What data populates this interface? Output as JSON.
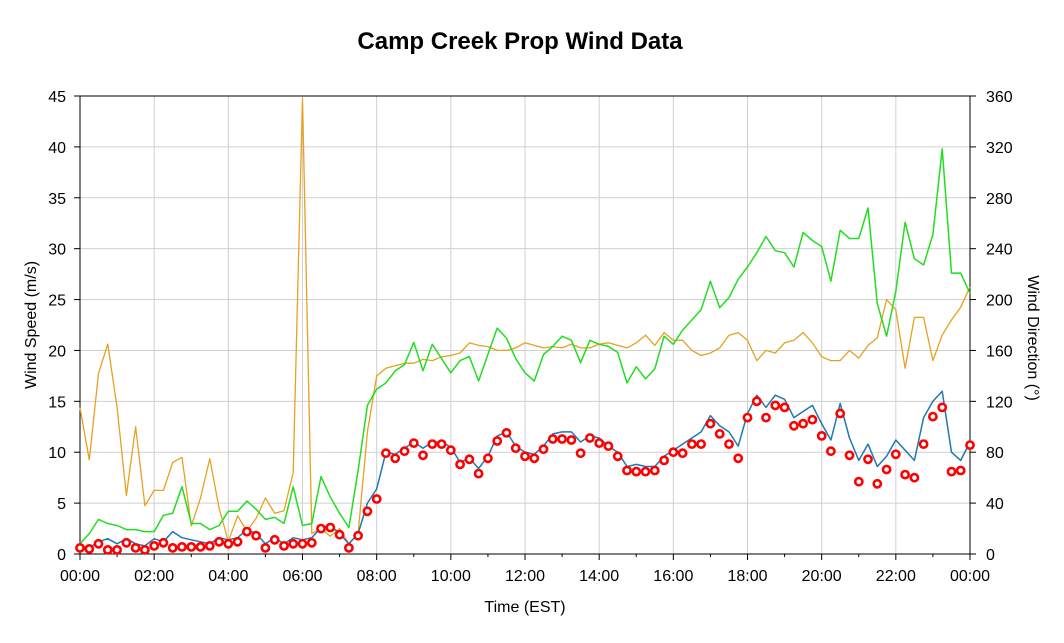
{
  "chart_data": {
    "type": "line",
    "title": "Camp Creek Prop Wind Data",
    "xlabel": "Time (EST)",
    "ylabel": "Wind Speed (m/s)",
    "y2label": "Wind Direction (°)",
    "xlim": [
      0,
      24
    ],
    "ylim": [
      0,
      45
    ],
    "y2lim": [
      0,
      360
    ],
    "x_ticks": [
      "00:00",
      "02:00",
      "04:00",
      "06:00",
      "08:00",
      "10:00",
      "12:00",
      "14:00",
      "16:00",
      "18:00",
      "20:00",
      "22:00",
      "00:00"
    ],
    "y_ticks": [
      "0",
      "5",
      "10",
      "15",
      "20",
      "25",
      "30",
      "35",
      "40",
      "45"
    ],
    "y2_ticks": [
      "0",
      "40",
      "80",
      "120",
      "160",
      "200",
      "240",
      "280",
      "320",
      "360"
    ],
    "grid": true,
    "legend": "none",
    "series": [
      {
        "role": "Wind Speed",
        "axis": "left",
        "style": "line",
        "color": "#1f77b4",
        "x": [
          0,
          0.25,
          0.5,
          0.75,
          1,
          1.25,
          1.5,
          1.75,
          2,
          2.25,
          2.5,
          2.75,
          3,
          3.25,
          3.5,
          3.75,
          4,
          4.25,
          4.5,
          4.75,
          5,
          5.25,
          5.5,
          5.75,
          6,
          6.25,
          6.5,
          6.75,
          7,
          7.25,
          7.5,
          7.75,
          8,
          8.25,
          8.5,
          8.75,
          9,
          9.25,
          9.5,
          9.75,
          10,
          10.25,
          10.5,
          10.75,
          11,
          11.25,
          11.5,
          11.75,
          12,
          12.25,
          12.5,
          12.75,
          13,
          13.25,
          13.5,
          13.75,
          14,
          14.25,
          14.5,
          14.75,
          15,
          15.25,
          15.5,
          15.75,
          16,
          16.25,
          16.5,
          16.75,
          17,
          17.25,
          17.5,
          17.75,
          18,
          18.25,
          18.5,
          18.75,
          19,
          19.25,
          19.5,
          19.75,
          20,
          20.25,
          20.5,
          20.75,
          21,
          21.25,
          21.5,
          21.75,
          22,
          22.25,
          22.5,
          22.75,
          23,
          23.25,
          23.5,
          23.75,
          24
        ],
        "values": [
          0.8,
          0.6,
          1.2,
          1.5,
          1.0,
          1.5,
          1.0,
          0.8,
          1.5,
          1.2,
          2.2,
          1.6,
          1.4,
          1.2,
          1.0,
          1.6,
          1.4,
          1.6,
          2.4,
          2.0,
          1.0,
          1.6,
          1.0,
          1.6,
          1.4,
          1.6,
          2.6,
          2.8,
          2.0,
          1.0,
          2.0,
          5.0,
          6.4,
          10.0,
          9.8,
          10.4,
          11.0,
          10.4,
          11.0,
          11.0,
          10.5,
          9.0,
          9.4,
          8.4,
          9.6,
          11.6,
          12.0,
          10.6,
          10.0,
          9.8,
          10.6,
          11.8,
          12.0,
          12.0,
          11.0,
          11.6,
          11.4,
          10.6,
          10.0,
          8.6,
          8.8,
          8.6,
          8.6,
          9.6,
          10.2,
          10.8,
          11.4,
          12.0,
          13.6,
          12.6,
          12.0,
          10.6,
          13.8,
          15.6,
          14.4,
          15.6,
          15.2,
          13.4,
          14.0,
          14.6,
          12.8,
          11.2,
          14.8,
          11.4,
          9.2,
          10.8,
          8.6,
          9.6,
          11.2,
          10.2,
          9.2,
          13.4,
          15.0,
          16.0,
          10.0,
          9.2,
          11.0
        ]
      },
      {
        "role": "Wind Speed (points)",
        "axis": "left",
        "style": "markers",
        "color": "#ff0000",
        "x": [
          0,
          0.25,
          0.5,
          0.75,
          1,
          1.25,
          1.5,
          1.75,
          2,
          2.25,
          2.5,
          2.75,
          3,
          3.25,
          3.5,
          3.75,
          4,
          4.25,
          4.5,
          4.75,
          5,
          5.25,
          5.5,
          5.75,
          6,
          6.25,
          6.5,
          6.75,
          7,
          7.25,
          7.5,
          7.75,
          8,
          8.25,
          8.5,
          8.75,
          9,
          9.25,
          9.5,
          9.75,
          10,
          10.25,
          10.5,
          10.75,
          11,
          11.25,
          11.5,
          11.75,
          12,
          12.25,
          12.5,
          12.75,
          13,
          13.25,
          13.5,
          13.75,
          14,
          14.25,
          14.5,
          14.75,
          15,
          15.25,
          15.5,
          15.75,
          16,
          16.25,
          16.5,
          16.75,
          17,
          17.25,
          17.5,
          17.75,
          18,
          18.25,
          18.5,
          18.75,
          19,
          19.25,
          19.5,
          19.75,
          20,
          20.25,
          20.5,
          20.75,
          21,
          21.25,
          21.5,
          21.75,
          22,
          22.25,
          22.5,
          22.75,
          23,
          23.25,
          23.5,
          23.75,
          24
        ],
        "values": [
          0.6,
          0.5,
          1.0,
          0.4,
          0.4,
          1.1,
          0.6,
          0.4,
          0.8,
          1.1,
          0.6,
          0.7,
          0.7,
          0.7,
          0.8,
          1.2,
          1.0,
          1.2,
          2.2,
          1.8,
          0.6,
          1.4,
          0.8,
          1.0,
          1.0,
          1.1,
          2.5,
          2.6,
          1.9,
          0.6,
          1.8,
          4.2,
          5.4,
          9.9,
          9.4,
          10.1,
          10.9,
          9.7,
          10.8,
          10.8,
          10.2,
          8.8,
          9.3,
          7.9,
          9.4,
          11.1,
          11.9,
          10.4,
          9.6,
          9.4,
          10.3,
          11.3,
          11.3,
          11.2,
          9.9,
          11.4,
          10.9,
          10.6,
          9.6,
          8.2,
          8.1,
          8.1,
          8.2,
          9.2,
          10.0,
          9.9,
          10.8,
          10.8,
          12.8,
          11.8,
          10.8,
          9.4,
          13.4,
          15.0,
          13.4,
          14.6,
          14.4,
          12.6,
          12.8,
          13.2,
          11.6,
          10.1,
          13.8,
          9.7,
          7.1,
          9.3,
          6.9,
          8.3,
          9.8,
          7.8,
          7.5,
          10.8,
          13.5,
          14.4,
          8.1,
          8.2,
          10.7
        ]
      },
      {
        "role": "Wind Gust",
        "axis": "left",
        "style": "line",
        "color": "#22dd22",
        "x": [
          0,
          0.25,
          0.5,
          0.75,
          1,
          1.25,
          1.5,
          1.75,
          2,
          2.25,
          2.5,
          2.75,
          3,
          3.25,
          3.5,
          3.75,
          4,
          4.25,
          4.5,
          4.75,
          5,
          5.25,
          5.5,
          5.75,
          6,
          6.25,
          6.5,
          6.75,
          7,
          7.25,
          7.5,
          7.75,
          8,
          8.25,
          8.5,
          8.75,
          9,
          9.25,
          9.5,
          9.75,
          10,
          10.25,
          10.5,
          10.75,
          11,
          11.25,
          11.5,
          11.75,
          12,
          12.25,
          12.5,
          12.75,
          13,
          13.25,
          13.5,
          13.75,
          14,
          14.25,
          14.5,
          14.75,
          15,
          15.25,
          15.5,
          15.75,
          16,
          16.25,
          16.5,
          16.75,
          17,
          17.25,
          17.5,
          17.75,
          18,
          18.25,
          18.5,
          18.75,
          19,
          19.25,
          19.5,
          19.75,
          20,
          20.25,
          20.5,
          20.75,
          21,
          21.25,
          21.5,
          21.75,
          22,
          22.25,
          22.5,
          22.75,
          23,
          23.25,
          23.5,
          23.75,
          24
        ],
        "values": [
          1.0,
          2.0,
          3.4,
          3.0,
          2.8,
          2.4,
          2.4,
          2.2,
          2.2,
          3.8,
          4.0,
          6.6,
          3.0,
          3.0,
          2.4,
          2.8,
          4.2,
          4.2,
          5.2,
          4.4,
          3.4,
          3.6,
          3.0,
          6.6,
          2.8,
          3.0,
          7.6,
          5.6,
          4.0,
          2.6,
          8.2,
          14.6,
          16.2,
          16.8,
          18.0,
          18.6,
          20.8,
          18.0,
          20.6,
          19.2,
          17.8,
          19.0,
          19.4,
          17.0,
          19.6,
          22.2,
          21.2,
          19.2,
          17.8,
          17.0,
          19.6,
          20.4,
          21.4,
          21.0,
          18.8,
          21.0,
          20.6,
          20.4,
          19.8,
          16.8,
          18.4,
          17.2,
          18.2,
          21.4,
          20.6,
          22.0,
          23.0,
          24.0,
          26.8,
          24.2,
          25.2,
          27.0,
          28.2,
          29.6,
          31.2,
          29.8,
          29.6,
          28.2,
          31.6,
          30.8,
          30.2,
          26.8,
          31.8,
          31.0,
          31.0,
          34.0,
          24.6,
          21.4,
          25.8,
          32.6,
          29.0,
          28.4,
          31.4,
          39.8,
          27.6,
          27.6,
          25.6
        ]
      },
      {
        "role": "Wind Direction",
        "axis": "right",
        "style": "line",
        "color": "#e8a020",
        "x": [
          0,
          0.25,
          0.5,
          0.75,
          1,
          1.25,
          1.5,
          1.75,
          2,
          2.25,
          2.5,
          2.75,
          3,
          3.25,
          3.5,
          3.75,
          4,
          4.25,
          4.5,
          4.75,
          5,
          5.25,
          5.5,
          5.75,
          6,
          6.25,
          6.5,
          6.75,
          7,
          7.25,
          7.5,
          7.75,
          8,
          8.25,
          8.5,
          8.75,
          9,
          9.25,
          9.5,
          9.75,
          10,
          10.25,
          10.5,
          10.75,
          11,
          11.25,
          11.5,
          11.75,
          12,
          12.25,
          12.5,
          12.75,
          13,
          13.25,
          13.5,
          13.75,
          14,
          14.25,
          14.5,
          14.75,
          15,
          15.25,
          15.5,
          15.75,
          16,
          16.25,
          16.5,
          16.75,
          17,
          17.25,
          17.5,
          17.75,
          18,
          18.25,
          18.5,
          18.75,
          19,
          19.25,
          19.5,
          19.75,
          20,
          20.25,
          20.5,
          20.75,
          21,
          21.25,
          21.5,
          21.75,
          22,
          22.25,
          22.5,
          22.75,
          23,
          23.25,
          23.5,
          23.75,
          24
        ],
        "values": [
          115,
          74,
          142,
          165,
          115,
          46,
          100,
          38,
          50,
          50,
          72,
          76,
          22,
          44,
          75,
          36,
          10,
          30,
          18,
          28,
          44,
          32,
          34,
          64,
          358,
          16,
          20,
          14,
          20,
          8,
          16,
          96,
          140,
          146,
          148,
          150,
          150,
          153,
          152,
          155,
          156,
          158,
          166,
          164,
          163,
          160,
          160,
          162,
          166,
          164,
          162,
          163,
          162,
          165,
          162,
          162,
          165,
          166,
          164,
          162,
          166,
          172,
          164,
          174,
          168,
          168,
          160,
          156,
          158,
          162,
          172,
          174,
          168,
          152,
          160,
          158,
          166,
          168,
          174,
          166,
          155,
          152,
          152,
          160,
          154,
          164,
          170,
          200,
          192,
          146,
          186,
          186,
          152,
          172,
          184,
          194,
          210
        ]
      }
    ]
  }
}
